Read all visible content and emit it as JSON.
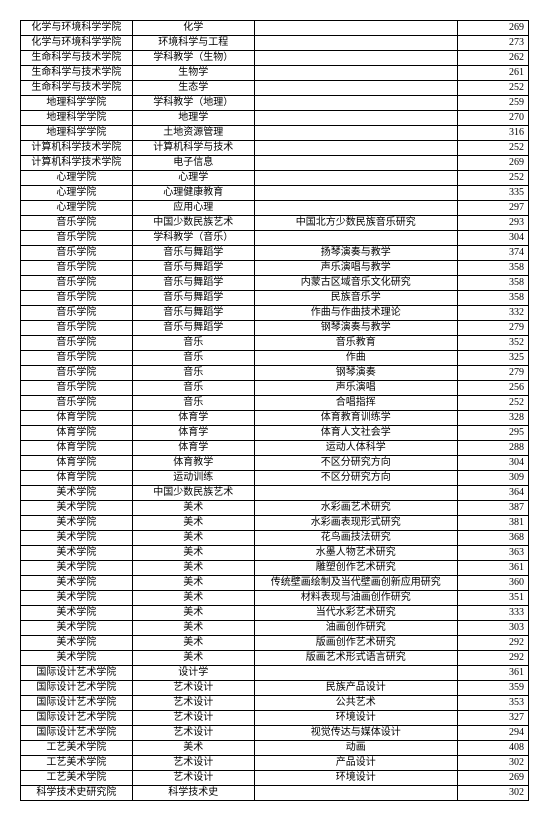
{
  "table": {
    "col_widths_pct": [
      22,
      24,
      40,
      14
    ],
    "border_color": "#000000",
    "background_color": "#ffffff",
    "text_color": "#000000",
    "font_size_pt": 8,
    "rows": [
      [
        "化学与环境科学学院",
        "化学",
        "",
        "269"
      ],
      [
        "化学与环境科学学院",
        "环境科学与工程",
        "",
        "273"
      ],
      [
        "生命科学与技术学院",
        "学科教学（生物）",
        "",
        "262"
      ],
      [
        "生命科学与技术学院",
        "生物学",
        "",
        "261"
      ],
      [
        "生命科学与技术学院",
        "生态学",
        "",
        "252"
      ],
      [
        "地理科学学院",
        "学科教学（地理）",
        "",
        "259"
      ],
      [
        "地理科学学院",
        "地理学",
        "",
        "270"
      ],
      [
        "地理科学学院",
        "土地资源管理",
        "",
        "316"
      ],
      [
        "计算机科学技术学院",
        "计算机科学与技术",
        "",
        "252"
      ],
      [
        "计算机科学技术学院",
        "电子信息",
        "",
        "269"
      ],
      [
        "心理学院",
        "心理学",
        "",
        "252"
      ],
      [
        "心理学院",
        "心理健康教育",
        "",
        "335"
      ],
      [
        "心理学院",
        "应用心理",
        "",
        "297"
      ],
      [
        "音乐学院",
        "中国少数民族艺术",
        "中国北方少数民族音乐研究",
        "293"
      ],
      [
        "音乐学院",
        "学科教学（音乐）",
        "",
        "304"
      ],
      [
        "音乐学院",
        "音乐与舞蹈学",
        "扬琴演奏与教学",
        "374"
      ],
      [
        "音乐学院",
        "音乐与舞蹈学",
        "声乐演唱与教学",
        "358"
      ],
      [
        "音乐学院",
        "音乐与舞蹈学",
        "内蒙古区域音乐文化研究",
        "358"
      ],
      [
        "音乐学院",
        "音乐与舞蹈学",
        "民族音乐学",
        "358"
      ],
      [
        "音乐学院",
        "音乐与舞蹈学",
        "作曲与作曲技术理论",
        "332"
      ],
      [
        "音乐学院",
        "音乐与舞蹈学",
        "钢琴演奏与教学",
        "279"
      ],
      [
        "音乐学院",
        "音乐",
        "音乐教育",
        "352"
      ],
      [
        "音乐学院",
        "音乐",
        "作曲",
        "325"
      ],
      [
        "音乐学院",
        "音乐",
        "钢琴演奏",
        "279"
      ],
      [
        "音乐学院",
        "音乐",
        "声乐演唱",
        "256"
      ],
      [
        "音乐学院",
        "音乐",
        "合唱指挥",
        "252"
      ],
      [
        "体育学院",
        "体育学",
        "体育教育训练学",
        "328"
      ],
      [
        "体育学院",
        "体育学",
        "体育人文社会学",
        "295"
      ],
      [
        "体育学院",
        "体育学",
        "运动人体科学",
        "288"
      ],
      [
        "体育学院",
        "体育教学",
        "不区分研究方向",
        "304"
      ],
      [
        "体育学院",
        "运动训练",
        "不区分研究方向",
        "309"
      ],
      [
        "美术学院",
        "中国少数民族艺术",
        "",
        "364"
      ],
      [
        "美术学院",
        "美术",
        "水彩画艺术研究",
        "387"
      ],
      [
        "美术学院",
        "美术",
        "水彩画表现形式研究",
        "381"
      ],
      [
        "美术学院",
        "美术",
        "花鸟画技法研究",
        "368"
      ],
      [
        "美术学院",
        "美术",
        "水墨人物艺术研究",
        "363"
      ],
      [
        "美术学院",
        "美术",
        "雕塑创作艺术研究",
        "361"
      ],
      [
        "美术学院",
        "美术",
        "传统壁画绘制及当代壁画创新应用研究",
        "360"
      ],
      [
        "美术学院",
        "美术",
        "材料表现与油画创作研究",
        "351"
      ],
      [
        "美术学院",
        "美术",
        "当代水彩艺术研究",
        "333"
      ],
      [
        "美术学院",
        "美术",
        "油画创作研究",
        "303"
      ],
      [
        "美术学院",
        "美术",
        "版画创作艺术研究",
        "292"
      ],
      [
        "美术学院",
        "美术",
        "版画艺术形式语言研究",
        "292"
      ],
      [
        "国际设计艺术学院",
        "设计学",
        "",
        "361"
      ],
      [
        "国际设计艺术学院",
        "艺术设计",
        "民族产品设计",
        "359"
      ],
      [
        "国际设计艺术学院",
        "艺术设计",
        "公共艺术",
        "353"
      ],
      [
        "国际设计艺术学院",
        "艺术设计",
        "环境设计",
        "327"
      ],
      [
        "国际设计艺术学院",
        "艺术设计",
        "视觉传达与媒体设计",
        "294"
      ],
      [
        "工艺美术学院",
        "美术",
        "动画",
        "408"
      ],
      [
        "工艺美术学院",
        "艺术设计",
        "产品设计",
        "302"
      ],
      [
        "工艺美术学院",
        "艺术设计",
        "环境设计",
        "269"
      ],
      [
        "科学技术史研究院",
        "科学技术史",
        "",
        "302"
      ]
    ]
  }
}
